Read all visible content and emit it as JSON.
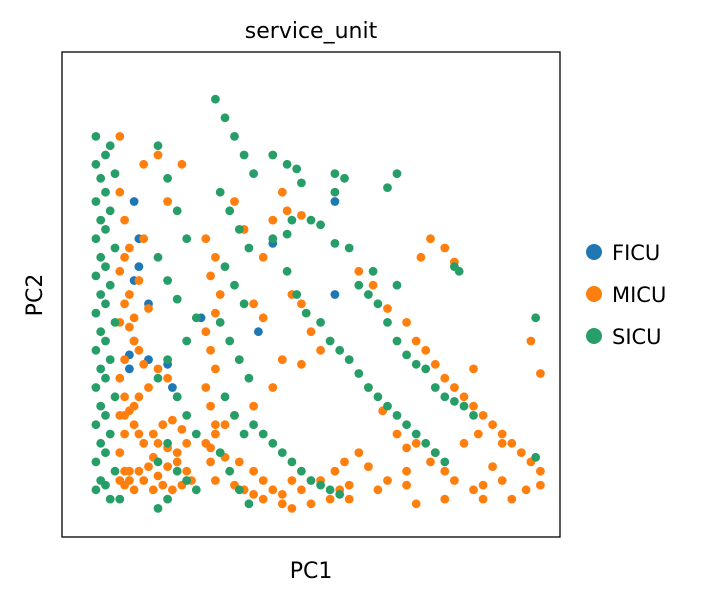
{
  "chart_data": {
    "type": "scatter",
    "title": "service_unit",
    "xlabel": "PC1",
    "ylabel": "PC2",
    "xlim": [
      0,
      100
    ],
    "ylim": [
      0,
      100
    ],
    "ticks_shown": false,
    "grid": false,
    "legend_position": "right",
    "series": [
      {
        "name": "FICU",
        "color": "#1f77b4",
        "points": [
          [
            13,
            70
          ],
          [
            14,
            62
          ],
          [
            13,
            53
          ],
          [
            16,
            48
          ],
          [
            13,
            40
          ],
          [
            12,
            37
          ],
          [
            21,
            30
          ],
          [
            22,
            28
          ],
          [
            16,
            36
          ],
          [
            39,
            42
          ],
          [
            42,
            61
          ],
          [
            27,
            45
          ],
          [
            20,
            35
          ],
          [
            55,
            70
          ],
          [
            55,
            50
          ],
          [
            14,
            56
          ],
          [
            12,
            34
          ]
        ]
      },
      {
        "name": "MICU",
        "color": "#ff7f0e",
        "points": [
          [
            10,
            84
          ],
          [
            15,
            78
          ],
          [
            18,
            80
          ],
          [
            23,
            78
          ],
          [
            20,
            70
          ],
          [
            15,
            62
          ],
          [
            14,
            53
          ],
          [
            12,
            50
          ],
          [
            16,
            47
          ],
          [
            13,
            45
          ],
          [
            12,
            43
          ],
          [
            13,
            40
          ],
          [
            14,
            38
          ],
          [
            15,
            35
          ],
          [
            18,
            34
          ],
          [
            20,
            32
          ],
          [
            16,
            30
          ],
          [
            14,
            28
          ],
          [
            13,
            26
          ],
          [
            12,
            25
          ],
          [
            11,
            24
          ],
          [
            13,
            22
          ],
          [
            14,
            20
          ],
          [
            15,
            18
          ],
          [
            17,
            15
          ],
          [
            16,
            13
          ],
          [
            14,
            12
          ],
          [
            12,
            10
          ],
          [
            11,
            9
          ],
          [
            13,
            8
          ],
          [
            15,
            10
          ],
          [
            18,
            11
          ],
          [
            20,
            13
          ],
          [
            22,
            16
          ],
          [
            24,
            18
          ],
          [
            23,
            21
          ],
          [
            21,
            23
          ],
          [
            19,
            22
          ],
          [
            17,
            20
          ],
          [
            18,
            18
          ],
          [
            20,
            17
          ],
          [
            22,
            14
          ],
          [
            24,
            12
          ],
          [
            25,
            10
          ],
          [
            23,
            9
          ],
          [
            21,
            8
          ],
          [
            19,
            9
          ],
          [
            17,
            8
          ],
          [
            34,
            70
          ],
          [
            36,
            64
          ],
          [
            42,
            66
          ],
          [
            45,
            68
          ],
          [
            44,
            72
          ],
          [
            48,
            67
          ],
          [
            40,
            58
          ],
          [
            38,
            48
          ],
          [
            40,
            45
          ],
          [
            46,
            50
          ],
          [
            48,
            48
          ],
          [
            50,
            42
          ],
          [
            52,
            38
          ],
          [
            48,
            35
          ],
          [
            44,
            36
          ],
          [
            42,
            30
          ],
          [
            38,
            26
          ],
          [
            34,
            24
          ],
          [
            32,
            22
          ],
          [
            30,
            20
          ],
          [
            29,
            17
          ],
          [
            32,
            15
          ],
          [
            35,
            14
          ],
          [
            38,
            12
          ],
          [
            40,
            10
          ],
          [
            42,
            8
          ],
          [
            44,
            7
          ],
          [
            46,
            10
          ],
          [
            48,
            8
          ],
          [
            52,
            10
          ],
          [
            55,
            12
          ],
          [
            57,
            14
          ],
          [
            60,
            16
          ],
          [
            62,
            13
          ],
          [
            58,
            9
          ],
          [
            56,
            8
          ],
          [
            54,
            6
          ],
          [
            50,
            5
          ],
          [
            46,
            4
          ],
          [
            44,
            5
          ],
          [
            40,
            6
          ],
          [
            38,
            7
          ],
          [
            36,
            8
          ],
          [
            34,
            9
          ],
          [
            62,
            30
          ],
          [
            65,
            25
          ],
          [
            68,
            20
          ],
          [
            70,
            17
          ],
          [
            72,
            18
          ],
          [
            76,
            16
          ],
          [
            78,
            12
          ],
          [
            80,
            10
          ],
          [
            84,
            8
          ],
          [
            86,
            9
          ],
          [
            88,
            13
          ],
          [
            90,
            10
          ],
          [
            95,
            8
          ],
          [
            98,
            9
          ],
          [
            92,
            6
          ],
          [
            86,
            6
          ],
          [
            78,
            6
          ],
          [
            72,
            5
          ],
          [
            70,
            9
          ],
          [
            75,
            14
          ],
          [
            60,
            55
          ],
          [
            63,
            52
          ],
          [
            66,
            47
          ],
          [
            70,
            44
          ],
          [
            72,
            40
          ],
          [
            74,
            38
          ],
          [
            76,
            35
          ],
          [
            78,
            32
          ],
          [
            80,
            30
          ],
          [
            82,
            28
          ],
          [
            84,
            26
          ],
          [
            86,
            24
          ],
          [
            88,
            22
          ],
          [
            90,
            20
          ],
          [
            92,
            18
          ],
          [
            94,
            16
          ],
          [
            96,
            14
          ],
          [
            98,
            12
          ],
          [
            10,
            72
          ],
          [
            11,
            66
          ],
          [
            12,
            60
          ],
          [
            11,
            58
          ],
          [
            10,
            55
          ],
          [
            11,
            48
          ],
          [
            10,
            44
          ],
          [
            11,
            36
          ],
          [
            10,
            32
          ],
          [
            11,
            28
          ],
          [
            10,
            24
          ],
          [
            11,
            20
          ],
          [
            10,
            16
          ],
          [
            11,
            12
          ],
          [
            10,
            10
          ],
          [
            12,
            12
          ],
          [
            28,
            62
          ],
          [
            30,
            58
          ],
          [
            29,
            54
          ],
          [
            31,
            50
          ],
          [
            30,
            46
          ],
          [
            28,
            42
          ],
          [
            29,
            38
          ],
          [
            30,
            34
          ],
          [
            28,
            30
          ],
          [
            29,
            26
          ],
          [
            30,
            22
          ],
          [
            28,
            18
          ],
          [
            29,
            14
          ],
          [
            30,
            10
          ],
          [
            75,
            62
          ],
          [
            78,
            60
          ],
          [
            73,
            58
          ],
          [
            80,
            57
          ],
          [
            96,
            40
          ],
          [
            98,
            33
          ],
          [
            84,
            34
          ],
          [
            85,
            20
          ],
          [
            90,
            18
          ],
          [
            82,
            18
          ],
          [
            70,
            12
          ],
          [
            66,
            10
          ],
          [
            64,
            8
          ],
          [
            58,
            6
          ]
        ]
      },
      {
        "name": "SICU",
        "color": "#279e68",
        "points": [
          [
            5,
            84
          ],
          [
            5,
            78
          ],
          [
            6,
            75
          ],
          [
            5,
            70
          ],
          [
            6,
            66
          ],
          [
            5,
            62
          ],
          [
            6,
            58
          ],
          [
            5,
            54
          ],
          [
            6,
            50
          ],
          [
            5,
            46
          ],
          [
            6,
            42
          ],
          [
            5,
            38
          ],
          [
            6,
            34
          ],
          [
            5,
            30
          ],
          [
            6,
            26
          ],
          [
            5,
            22
          ],
          [
            6,
            18
          ],
          [
            5,
            14
          ],
          [
            6,
            10
          ],
          [
            5,
            8
          ],
          [
            7,
            80
          ],
          [
            7,
            72
          ],
          [
            7,
            64
          ],
          [
            7,
            56
          ],
          [
            7,
            48
          ],
          [
            7,
            40
          ],
          [
            7,
            32
          ],
          [
            7,
            24
          ],
          [
            7,
            16
          ],
          [
            7,
            9
          ],
          [
            8,
            82
          ],
          [
            9,
            76
          ],
          [
            8,
            68
          ],
          [
            9,
            60
          ],
          [
            8,
            52
          ],
          [
            9,
            44
          ],
          [
            8,
            36
          ],
          [
            9,
            28
          ],
          [
            8,
            20
          ],
          [
            9,
            12
          ],
          [
            10,
            6
          ],
          [
            8,
            6
          ],
          [
            18,
            82
          ],
          [
            20,
            75
          ],
          [
            22,
            68
          ],
          [
            24,
            62
          ],
          [
            18,
            58
          ],
          [
            20,
            53
          ],
          [
            22,
            49
          ],
          [
            26,
            45
          ],
          [
            24,
            40
          ],
          [
            20,
            36
          ],
          [
            18,
            32
          ],
          [
            22,
            28
          ],
          [
            24,
            24
          ],
          [
            26,
            20
          ],
          [
            20,
            18
          ],
          [
            18,
            14
          ],
          [
            22,
            12
          ],
          [
            24,
            10
          ],
          [
            26,
            8
          ],
          [
            20,
            6
          ],
          [
            18,
            4
          ],
          [
            30,
            92
          ],
          [
            32,
            88
          ],
          [
            34,
            84
          ],
          [
            36,
            80
          ],
          [
            38,
            76
          ],
          [
            31,
            72
          ],
          [
            33,
            68
          ],
          [
            35,
            64
          ],
          [
            37,
            60
          ],
          [
            32,
            56
          ],
          [
            34,
            52
          ],
          [
            36,
            48
          ],
          [
            31,
            44
          ],
          [
            33,
            40
          ],
          [
            35,
            36
          ],
          [
            37,
            32
          ],
          [
            32,
            28
          ],
          [
            34,
            24
          ],
          [
            36,
            20
          ],
          [
            31,
            16
          ],
          [
            33,
            12
          ],
          [
            35,
            8
          ],
          [
            37,
            5
          ],
          [
            42,
            80
          ],
          [
            45,
            78
          ],
          [
            47,
            77
          ],
          [
            48,
            74
          ],
          [
            46,
            66
          ],
          [
            50,
            66
          ],
          [
            52,
            65
          ],
          [
            55,
            61
          ],
          [
            58,
            60
          ],
          [
            60,
            52
          ],
          [
            62,
            50
          ],
          [
            64,
            48
          ],
          [
            66,
            44
          ],
          [
            68,
            40
          ],
          [
            70,
            37
          ],
          [
            72,
            35
          ],
          [
            74,
            34
          ],
          [
            76,
            30
          ],
          [
            78,
            28
          ],
          [
            80,
            27
          ],
          [
            82,
            26
          ],
          [
            84,
            24
          ],
          [
            45,
            55
          ],
          [
            47,
            50
          ],
          [
            49,
            46
          ],
          [
            52,
            44
          ],
          [
            54,
            40
          ],
          [
            56,
            38
          ],
          [
            58,
            36
          ],
          [
            60,
            33
          ],
          [
            62,
            30
          ],
          [
            64,
            28
          ],
          [
            66,
            26
          ],
          [
            68,
            24
          ],
          [
            70,
            22
          ],
          [
            72,
            20
          ],
          [
            74,
            18
          ],
          [
            76,
            16
          ],
          [
            78,
            14
          ],
          [
            38,
            22
          ],
          [
            40,
            20
          ],
          [
            42,
            18
          ],
          [
            44,
            16
          ],
          [
            46,
            14
          ],
          [
            48,
            12
          ],
          [
            50,
            10
          ],
          [
            52,
            9
          ],
          [
            54,
            8
          ],
          [
            56,
            7
          ],
          [
            55,
            76
          ],
          [
            57,
            75
          ],
          [
            66,
            73
          ],
          [
            68,
            76
          ],
          [
            80,
            56
          ],
          [
            81,
            55
          ],
          [
            97,
            45
          ],
          [
            97,
            15
          ],
          [
            68,
            52
          ],
          [
            63,
            55
          ],
          [
            55,
            72
          ],
          [
            42,
            62
          ],
          [
            45,
            63
          ]
        ]
      }
    ]
  }
}
